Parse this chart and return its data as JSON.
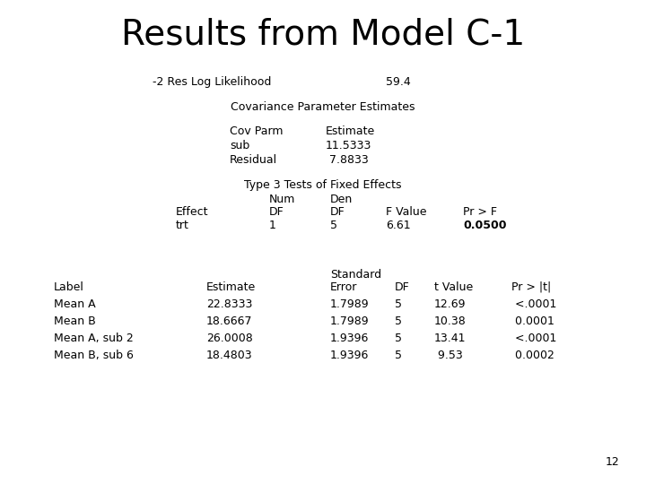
{
  "title": "Results from Model C-1",
  "title_fontsize": 28,
  "bg_color": "#ffffff",
  "mono_font": "Courier New",
  "title_font": "DejaVu Sans",
  "slide_number": "12",
  "line1_label": "-2 Res Log Likelihood",
  "line1_value": "59.4",
  "section1_title": "Covariance Parameter Estimates",
  "cov_header": [
    "Cov Parm",
    "Estimate"
  ],
  "cov_rows": [
    [
      "sub",
      "11.5333"
    ],
    [
      "Residual",
      " 7.8833"
    ]
  ],
  "section2_title": "Type 3 Tests of Fixed Effects",
  "fixed_rows": [
    [
      "trt",
      "1",
      "5",
      "6.61",
      "0.0500"
    ]
  ],
  "section3_rows": [
    [
      "Mean A",
      "22.8333",
      "1.7989",
      "5",
      "12.69",
      " <.0001"
    ],
    [
      "Mean B",
      "18.6667",
      "1.7989",
      "5",
      "10.38",
      " 0.0001"
    ],
    [
      "Mean A, sub 2",
      "26.0008",
      "1.9396",
      "5",
      "13.41",
      " <.0001"
    ],
    [
      "Mean B, sub 6",
      "18.4803",
      "1.9396",
      "5",
      " 9.53",
      " 0.0002"
    ]
  ]
}
